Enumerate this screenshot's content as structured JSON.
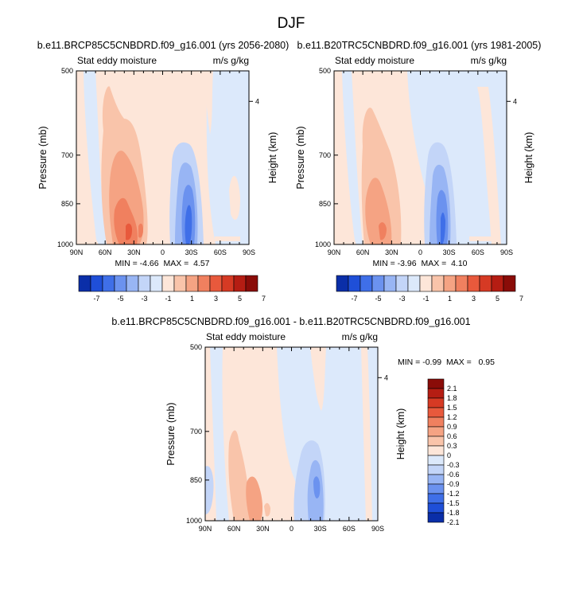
{
  "figure": {
    "title": "DJF"
  },
  "palette": {
    "levels11": [
      -7,
      -5,
      -3,
      -1,
      1,
      3,
      5,
      7
    ],
    "colors": [
      "#0a2ea8",
      "#1f4fd8",
      "#3f6fe8",
      "#6b92ef",
      "#98b5f4",
      "#c3d5f8",
      "#dce9fb",
      "#fde6d9",
      "#f9c4aa",
      "#f5a383",
      "#f0805f",
      "#e8593c",
      "#d63a24",
      "#b51d13",
      "#8a0c08"
    ]
  },
  "chart_data": [
    {
      "type": "heatmap",
      "title": "b.e11.BRCP85C5CNBDRD.f09_g16.001 (yrs 2056-2080)",
      "left_label": "Stat eddy moisture",
      "right_label": "m/s g/kg",
      "xlabel": "",
      "ylabel": "Pressure (mb)",
      "y2label": "Height (km)",
      "x_ticks": [
        "90N",
        "60N",
        "30N",
        "0",
        "30S",
        "60S",
        "90S"
      ],
      "y_ticks": [
        "500",
        "700",
        "850",
        "1000"
      ],
      "y2_ticks": [
        "4"
      ],
      "xlim": [
        90,
        -90
      ],
      "ylim": [
        1000,
        500
      ],
      "stats": "MIN = -4.66  MAX =  4.57",
      "colorbar_labels": [
        "-7",
        "-5",
        "-3",
        "-1",
        "1",
        "3",
        "5",
        "7"
      ]
    },
    {
      "type": "heatmap",
      "title": "b.e11.B20TRC5CNBDRD.f09_g16.001 (yrs 1981-2005)",
      "left_label": "Stat eddy moisture",
      "right_label": "m/s g/kg",
      "xlabel": "",
      "ylabel": "Pressure (mb)",
      "y2label": "Height (km)",
      "x_ticks": [
        "90N",
        "60N",
        "30N",
        "0",
        "30S",
        "60S",
        "90S"
      ],
      "y_ticks": [
        "500",
        "700",
        "850",
        "1000"
      ],
      "y2_ticks": [
        "4"
      ],
      "xlim": [
        90,
        -90
      ],
      "ylim": [
        1000,
        500
      ],
      "stats": "MIN = -3.96  MAX =  4.10",
      "colorbar_labels": [
        "-7",
        "-5",
        "-3",
        "-1",
        "1",
        "3",
        "5",
        "7"
      ]
    },
    {
      "type": "heatmap",
      "title": "b.e11.BRCP85C5CNBDRD.f09_g16.001 - b.e11.B20TRC5CNBDRD.f09_g16.001",
      "left_label": "Stat eddy moisture",
      "right_label": "m/s g/kg",
      "xlabel": "",
      "ylabel": "Pressure (mb)",
      "y2label": "Height (km)",
      "x_ticks": [
        "90N",
        "60N",
        "30N",
        "0",
        "30S",
        "60S",
        "90S"
      ],
      "y_ticks": [
        "500",
        "700",
        "850",
        "1000"
      ],
      "y2_ticks": [
        "4"
      ],
      "xlim": [
        90,
        -90
      ],
      "ylim": [
        1000,
        500
      ],
      "stats": "MIN = -0.99  MAX =   0.95",
      "colorbar_labels": [
        "2.1",
        "1.8",
        "1.5",
        "1.2",
        "0.9",
        "0.6",
        "0.3",
        "0",
        "-0.3",
        "-0.6",
        "-0.9",
        "-1.2",
        "-1.5",
        "-1.8",
        "-2.1"
      ]
    }
  ]
}
